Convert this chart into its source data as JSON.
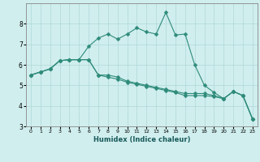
{
  "title": "",
  "xlabel": "Humidex (Indice chaleur)",
  "ylabel": "",
  "x": [
    0,
    1,
    2,
    3,
    4,
    5,
    6,
    7,
    8,
    9,
    10,
    11,
    12,
    13,
    14,
    15,
    16,
    17,
    18,
    19,
    20,
    21,
    22,
    23
  ],
  "line1": [
    5.5,
    5.65,
    5.8,
    6.2,
    6.25,
    6.25,
    6.9,
    7.3,
    7.5,
    7.25,
    7.5,
    7.8,
    7.6,
    7.5,
    8.55,
    7.45,
    7.5,
    6.0,
    5.0,
    4.65,
    4.35,
    4.7,
    4.5,
    3.35
  ],
  "line2": [
    5.5,
    5.65,
    5.8,
    6.2,
    6.25,
    6.25,
    6.25,
    5.5,
    5.5,
    5.4,
    5.2,
    5.1,
    5.0,
    4.9,
    4.8,
    4.7,
    4.6,
    4.6,
    4.6,
    4.5,
    4.35,
    4.7,
    4.5,
    3.35
  ],
  "line3": [
    5.5,
    5.65,
    5.8,
    6.2,
    6.25,
    6.25,
    6.25,
    5.5,
    5.4,
    5.3,
    5.15,
    5.05,
    4.95,
    4.85,
    4.75,
    4.65,
    4.5,
    4.5,
    4.5,
    4.45,
    4.35,
    4.7,
    4.5,
    3.35
  ],
  "line_color": "#2e8b7a",
  "bg_color": "#d0eeee",
  "grid_color": "#b0d8d8",
  "ylim": [
    3,
    9
  ],
  "yticks": [
    3,
    4,
    5,
    6,
    7,
    8
  ],
  "figsize": [
    3.2,
    2.0
  ],
  "dpi": 100
}
